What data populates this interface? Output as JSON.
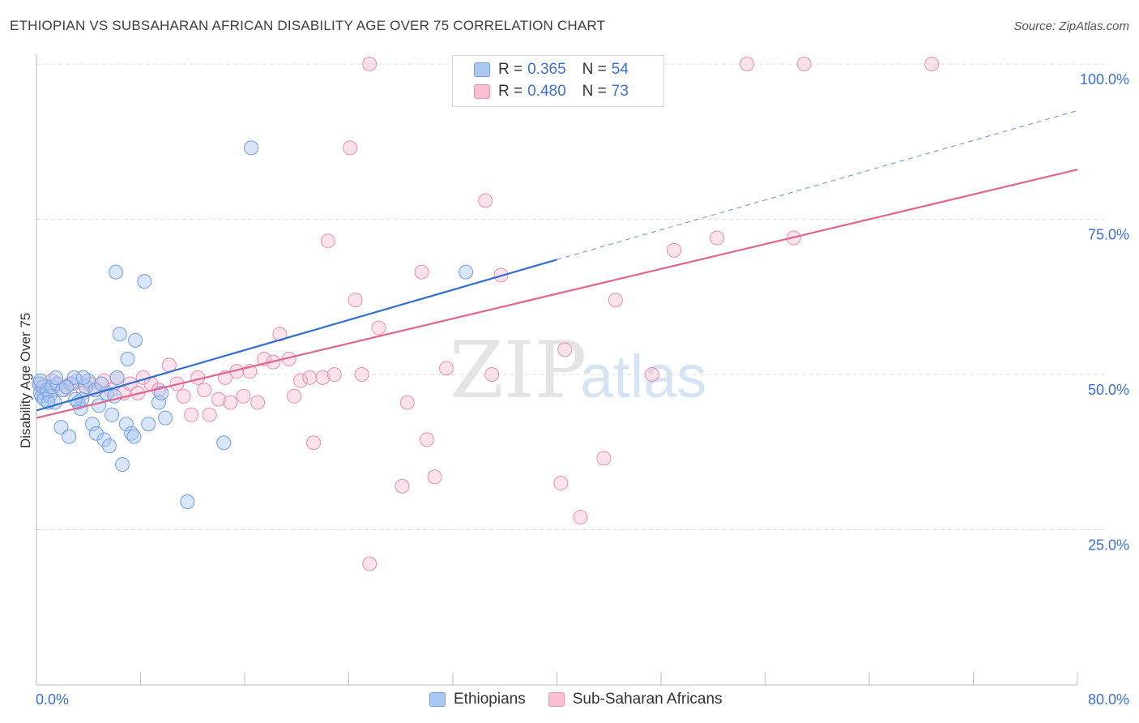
{
  "header": {
    "title": "ETHIOPIAN VS SUBSAHARAN AFRICAN DISABILITY AGE OVER 75 CORRELATION CHART",
    "source": "Source: ZipAtlas.com"
  },
  "legend": {
    "r_label": "R =",
    "n_label": "N =",
    "rows": [
      {
        "r": "0.365",
        "n": "54",
        "color": "#aac8f2",
        "border": "#6f9fe0"
      },
      {
        "r": "0.480",
        "n": "73",
        "color": "#f7bfd2",
        "border": "#e890b0"
      }
    ]
  },
  "bottom_legend": [
    "Ethiopians",
    "Sub-Saharan Africans"
  ],
  "watermark": {
    "zip": "ZIP",
    "atlas": "atlas"
  },
  "colors": {
    "blue_fill": "#aac8f2",
    "blue_stroke": "#6f9fe0",
    "blue_line": "#2f6fd0",
    "pink_fill": "#f7bfd2",
    "pink_stroke": "#e890b0",
    "pink_line": "#e0658f",
    "tick_label": "#3d6fd6",
    "grid": "#dddddd"
  },
  "chart_data": {
    "type": "scatter",
    "title": "ETHIOPIAN VS SUBSAHARAN AFRICAN DISABILITY AGE OVER 75 CORRELATION CHART",
    "xlabel": "",
    "ylabel": "Disability Age Over 75",
    "xlim": [
      0,
      80
    ],
    "ylim": [
      0,
      100
    ],
    "x_tick_labels": [
      "0.0%",
      "80.0%"
    ],
    "y_tick_labels": [
      "25.0%",
      "50.0%",
      "75.0%",
      "100.0%"
    ],
    "y_ticks": [
      25,
      50,
      75,
      100
    ],
    "x_minor_ticks": [
      0,
      8,
      16,
      24,
      32,
      40,
      48,
      56,
      64,
      72,
      80
    ],
    "grid": true,
    "legend_placement": "top-center",
    "series": [
      {
        "name": "Ethiopians",
        "r": 0.365,
        "n": 54,
        "trend": {
          "x0": 0,
          "y0": 44.2,
          "x1": 40,
          "y1": 68.5,
          "dash_to_x": 80,
          "dash_to_y": 92.5
        },
        "points": [
          [
            0.2,
            48.5
          ],
          [
            0.3,
            47.0
          ],
          [
            0.4,
            46.5
          ],
          [
            0.5,
            48.0
          ],
          [
            0.6,
            46.0
          ],
          [
            0.8,
            47.5
          ],
          [
            1.0,
            46.5
          ],
          [
            1.2,
            48.0
          ],
          [
            1.4,
            45.5
          ],
          [
            1.6,
            48.5
          ],
          [
            2.0,
            47.5
          ],
          [
            1.9,
            41.5
          ],
          [
            2.5,
            40.0
          ],
          [
            2.7,
            48.5
          ],
          [
            2.9,
            49.5
          ],
          [
            3.2,
            45.5
          ],
          [
            3.4,
            44.5
          ],
          [
            3.5,
            46.0
          ],
          [
            3.8,
            48.0
          ],
          [
            4.0,
            49.0
          ],
          [
            4.3,
            42.0
          ],
          [
            4.5,
            47.5
          ],
          [
            4.8,
            45.0
          ],
          [
            4.6,
            40.5
          ],
          [
            5.2,
            39.5
          ],
          [
            5.4,
            47.0
          ],
          [
            5.6,
            38.5
          ],
          [
            5.8,
            43.5
          ],
          [
            6.0,
            46.5
          ],
          [
            6.2,
            49.5
          ],
          [
            6.4,
            56.5
          ],
          [
            6.6,
            35.5
          ],
          [
            6.9,
            42.0
          ],
          [
            7.0,
            52.5
          ],
          [
            7.3,
            40.5
          ],
          [
            7.6,
            55.5
          ],
          [
            8.3,
            65.0
          ],
          [
            8.6,
            42.0
          ],
          [
            9.4,
            45.5
          ],
          [
            9.6,
            47.0
          ],
          [
            9.9,
            43.0
          ],
          [
            11.6,
            29.5
          ],
          [
            14.4,
            39.0
          ],
          [
            16.5,
            86.5
          ],
          [
            33.0,
            66.5
          ],
          [
            0.3,
            49.0
          ],
          [
            0.9,
            45.5
          ],
          [
            1.5,
            49.5
          ],
          [
            2.3,
            48.0
          ],
          [
            3.0,
            46.0
          ],
          [
            3.6,
            49.5
          ],
          [
            5.0,
            48.5
          ],
          [
            6.1,
            66.5
          ],
          [
            7.5,
            40.0
          ]
        ]
      },
      {
        "name": "Sub-Saharan Africans",
        "r": 0.48,
        "n": 73,
        "trend": {
          "x0": 0,
          "y0": 43.0,
          "x1": 80,
          "y1": 83.0
        },
        "points": [
          [
            0.3,
            48.5
          ],
          [
            0.6,
            47.0
          ],
          [
            0.9,
            48.0
          ],
          [
            1.2,
            49.0
          ],
          [
            1.6,
            48.5
          ],
          [
            2.1,
            47.5
          ],
          [
            2.6,
            48.5
          ],
          [
            3.1,
            49.0
          ],
          [
            3.6,
            47.0
          ],
          [
            4.1,
            48.5
          ],
          [
            4.6,
            47.5
          ],
          [
            5.2,
            49.0
          ],
          [
            5.7,
            47.5
          ],
          [
            6.2,
            49.5
          ],
          [
            6.7,
            47.0
          ],
          [
            7.2,
            48.5
          ],
          [
            7.8,
            47.0
          ],
          [
            8.2,
            49.5
          ],
          [
            8.8,
            48.5
          ],
          [
            9.4,
            47.5
          ],
          [
            10.2,
            51.5
          ],
          [
            10.8,
            48.5
          ],
          [
            11.3,
            46.5
          ],
          [
            11.9,
            43.5
          ],
          [
            12.4,
            49.5
          ],
          [
            12.9,
            47.5
          ],
          [
            13.3,
            43.5
          ],
          [
            14.0,
            46.0
          ],
          [
            14.5,
            49.5
          ],
          [
            14.9,
            45.5
          ],
          [
            15.4,
            50.5
          ],
          [
            15.9,
            46.5
          ],
          [
            16.4,
            50.5
          ],
          [
            17.0,
            45.5
          ],
          [
            17.5,
            52.5
          ],
          [
            18.2,
            52.0
          ],
          [
            18.7,
            56.5
          ],
          [
            19.4,
            52.5
          ],
          [
            19.8,
            46.5
          ],
          [
            20.3,
            49.0
          ],
          [
            21.0,
            49.5
          ],
          [
            21.3,
            39.0
          ],
          [
            22.0,
            49.5
          ],
          [
            22.4,
            71.5
          ],
          [
            22.9,
            50.0
          ],
          [
            24.1,
            86.5
          ],
          [
            24.5,
            62.0
          ],
          [
            25.0,
            50.0
          ],
          [
            25.6,
            100.0
          ],
          [
            26.3,
            57.5
          ],
          [
            28.5,
            45.5
          ],
          [
            29.6,
            66.5
          ],
          [
            30.0,
            39.5
          ],
          [
            30.6,
            33.5
          ],
          [
            31.5,
            51.0
          ],
          [
            28.1,
            32.0
          ],
          [
            32.7,
            100.0
          ],
          [
            34.5,
            78.0
          ],
          [
            35.0,
            50.0
          ],
          [
            35.7,
            66.0
          ],
          [
            25.6,
            19.5
          ],
          [
            40.3,
            32.5
          ],
          [
            40.6,
            54.0
          ],
          [
            41.8,
            27.0
          ],
          [
            43.6,
            36.5
          ],
          [
            47.3,
            50.0
          ],
          [
            49.0,
            70.0
          ],
          [
            52.3,
            72.0
          ],
          [
            54.6,
            100.0
          ],
          [
            58.2,
            72.0
          ],
          [
            59.0,
            100.0
          ],
          [
            68.8,
            100.0
          ],
          [
            44.5,
            62.0
          ]
        ]
      }
    ]
  }
}
